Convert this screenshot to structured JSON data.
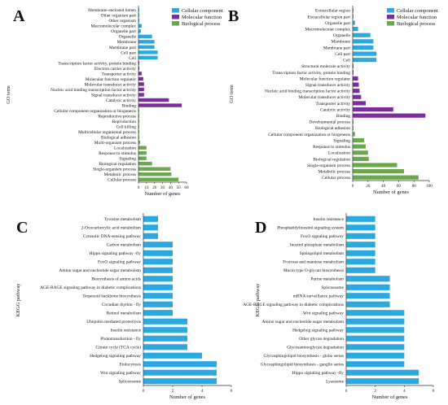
{
  "chart_data": [
    {
      "panel": "A",
      "type": "bar",
      "orientation": "horizontal",
      "xlabel": "Number of genes",
      "ylabel": "GO term",
      "xlim": [
        0,
        60
      ],
      "xticks": [
        0,
        10,
        20,
        30,
        40,
        50,
        60
      ],
      "legend": {
        "position": "top-right",
        "entries": [
          "Cellular component",
          "Molecular function",
          "Biological process"
        ]
      },
      "colors": {
        "Cellular component": "#29a9e0",
        "Molecular function": "#7b2f9e",
        "Biological process": "#6aa84f"
      },
      "categories": [
        {
          "label": "Membrane-enclosed lumen",
          "group": "Cellular component",
          "value": 1
        },
        {
          "label": "Other organism part",
          "group": "Cellular component",
          "value": 1
        },
        {
          "label": "Other organism",
          "group": "Cellular component",
          "value": 1
        },
        {
          "label": "Macromolecular complex",
          "group": "Cellular component",
          "value": 4
        },
        {
          "label": "Organelle part",
          "group": "Cellular component",
          "value": 3
        },
        {
          "label": "Organelle",
          "group": "Cellular component",
          "value": 17
        },
        {
          "label": "Membrane",
          "group": "Cellular component",
          "value": 20
        },
        {
          "label": "Membrane part",
          "group": "Cellular component",
          "value": 20
        },
        {
          "label": "Cell part",
          "group": "Cellular component",
          "value": 24
        },
        {
          "label": "Cell",
          "group": "Cellular component",
          "value": 24
        },
        {
          "label": "Transcription factor activity, protein binding",
          "group": "Molecular function",
          "value": 1
        },
        {
          "label": "Electron carrier activity",
          "group": "Molecular function",
          "value": 1
        },
        {
          "label": "Transporter activity",
          "group": "Molecular function",
          "value": 4
        },
        {
          "label": "Molecular function regulator",
          "group": "Molecular function",
          "value": 6
        },
        {
          "label": "Molecular transducer activity",
          "group": "Molecular function",
          "value": 7
        },
        {
          "label": "Nucleic acid binding transcription factor activity",
          "group": "Molecular function",
          "value": 7
        },
        {
          "label": "Signal transducer activity",
          "group": "Molecular function",
          "value": 7
        },
        {
          "label": "Catalytic activity",
          "group": "Molecular function",
          "value": 38
        },
        {
          "label": "Binding",
          "group": "Molecular function",
          "value": 54
        },
        {
          "label": "Cellular component organization or biogenesis",
          "group": "Biological process",
          "value": 1
        },
        {
          "label": "Reproductive process",
          "group": "Biological process",
          "value": 1
        },
        {
          "label": "Reproduction",
          "group": "Biological process",
          "value": 1
        },
        {
          "label": "Cell killing",
          "group": "Biological process",
          "value": 1
        },
        {
          "label": "Multicellular organismal process",
          "group": "Biological process",
          "value": 1
        },
        {
          "label": "Biological adhesion",
          "group": "Biological process",
          "value": 1
        },
        {
          "label": "Multi-organism process",
          "group": "Biological process",
          "value": 2
        },
        {
          "label": "Localization",
          "group": "Biological process",
          "value": 10
        },
        {
          "label": "Response to stimulus",
          "group": "Biological process",
          "value": 10
        },
        {
          "label": "Signaling",
          "group": "Biological process",
          "value": 10
        },
        {
          "label": "Biological regulation",
          "group": "Biological process",
          "value": 17
        },
        {
          "label": "Single-organism process",
          "group": "Biological process",
          "value": 40
        },
        {
          "label": "Metabolic process",
          "group": "Biological process",
          "value": 41
        },
        {
          "label": "Cellular process",
          "group": "Biological process",
          "value": 50
        }
      ]
    },
    {
      "panel": "B",
      "type": "bar",
      "orientation": "horizontal",
      "xlabel": "Number of genes",
      "ylabel": "GO term",
      "xlim": [
        0,
        100
      ],
      "xticks": [
        0,
        20,
        40,
        60,
        80,
        100
      ],
      "legend": {
        "position": "top-right",
        "entries": [
          "Cellular component",
          "Molecular function",
          "Biological process"
        ]
      },
      "colors": {
        "Cellular component": "#29a9e0",
        "Molecular function": "#7b2f9e",
        "Biological process": "#6aa84f"
      },
      "categories": [
        {
          "label": "Extracellular region",
          "group": "Cellular component",
          "value": 1
        },
        {
          "label": "Extracellular region part",
          "group": "Cellular component",
          "value": 1
        },
        {
          "label": "Organelle part",
          "group": "Cellular component",
          "value": 3
        },
        {
          "label": "Macromolecular complex",
          "group": "Cellular component",
          "value": 7
        },
        {
          "label": "Organelle",
          "group": "Cellular component",
          "value": 23
        },
        {
          "label": "Membrane",
          "group": "Cellular component",
          "value": 27
        },
        {
          "label": "Membrane part",
          "group": "Cellular component",
          "value": 27
        },
        {
          "label": "Cell part",
          "group": "Cellular component",
          "value": 31
        },
        {
          "label": "Cell",
          "group": "Cellular component",
          "value": 31
        },
        {
          "label": "Structural molecule activity",
          "group": "Molecular function",
          "value": 1
        },
        {
          "label": "Transcription factor activity, protein binding",
          "group": "Molecular function",
          "value": 1
        },
        {
          "label": "Molecular function regulator",
          "group": "Molecular function",
          "value": 7
        },
        {
          "label": "Signal transducer activity",
          "group": "Molecular function",
          "value": 8
        },
        {
          "label": "Nucleic acid binding transcription factor activity",
          "group": "Molecular function",
          "value": 9
        },
        {
          "label": "Molecular transducer activity",
          "group": "Molecular function",
          "value": 11
        },
        {
          "label": "Transporter activity",
          "group": "Molecular function",
          "value": 17
        },
        {
          "label": "Catalytic activity",
          "group": "Molecular function",
          "value": 53
        },
        {
          "label": "Binding",
          "group": "Molecular function",
          "value": 95
        },
        {
          "label": "Developmental process",
          "group": "Biological process",
          "value": 1
        },
        {
          "label": "Biological adhesion",
          "group": "Biological process",
          "value": 1
        },
        {
          "label": "Cellular component organization or biogenesis",
          "group": "Biological process",
          "value": 3
        },
        {
          "label": "Signaling",
          "group": "Biological process",
          "value": 15
        },
        {
          "label": "Response to stimulus",
          "group": "Biological process",
          "value": 17
        },
        {
          "label": "Localization",
          "group": "Biological process",
          "value": 20
        },
        {
          "label": "Biological regulation",
          "group": "Biological process",
          "value": 21
        },
        {
          "label": "Single-organism process",
          "group": "Biological process",
          "value": 58
        },
        {
          "label": "Metabolic process",
          "group": "Biological process",
          "value": 67
        },
        {
          "label": "Cellular process",
          "group": "Biological process",
          "value": 86
        }
      ]
    },
    {
      "panel": "C",
      "type": "bar",
      "orientation": "horizontal",
      "xlabel": "Number of genes",
      "ylabel": "KEGG pathway",
      "xlim": [
        0,
        6
      ],
      "xticks": [
        0,
        2,
        4,
        6
      ],
      "color": "#29a9e0",
      "categories": [
        {
          "label": "Tyrosine metabolism",
          "value": 1
        },
        {
          "label": "2-Oxocarboxylic acid metabolism",
          "value": 1
        },
        {
          "label": "Cytosolic DNA-sensing pathway",
          "value": 1
        },
        {
          "label": "Carbon metabolism",
          "value": 2
        },
        {
          "label": "Hippo signaling pathway -fly",
          "value": 2
        },
        {
          "label": "FoxO signaling pathway",
          "value": 2
        },
        {
          "label": "Amino sugar and nucleotide sugar metabolism",
          "value": 2
        },
        {
          "label": "Biosynthesis of amino acids",
          "value": 2
        },
        {
          "label": "AGE-RAGE signaling pathway in diabetic complications",
          "value": 2
        },
        {
          "label": "Terpenoid backbone biosynthesis",
          "value": 2
        },
        {
          "label": "Circadian rhythm - fly",
          "value": 2
        },
        {
          "label": "Retinol metabolism",
          "value": 2
        },
        {
          "label": "Ubiquitin mediated proteolysis",
          "value": 3
        },
        {
          "label": "Insulin resistance",
          "value": 3
        },
        {
          "label": "Phototransduction - fly",
          "value": 3
        },
        {
          "label": "Citrate cycle (TCA cycle)",
          "value": 3
        },
        {
          "label": "Hedgehog signaling pathway",
          "value": 4
        },
        {
          "label": "Endocytosis",
          "value": 5
        },
        {
          "label": "Wnt signaling pathway",
          "value": 5
        },
        {
          "label": "Spliceosome",
          "value": 5
        }
      ]
    },
    {
      "panel": "D",
      "type": "bar",
      "orientation": "horizontal",
      "xlabel": "Number of genes",
      "ylabel": "KEGG pathway",
      "xlim": [
        0,
        6
      ],
      "xticks": [
        0,
        2,
        4,
        6
      ],
      "color": "#29a9e0",
      "categories": [
        {
          "label": "Insulin resistance",
          "value": 2
        },
        {
          "label": "Phosphatidylinositol signaling system",
          "value": 2
        },
        {
          "label": "FoxO signaling pathway",
          "value": 2
        },
        {
          "label": "Inositol phosphate metabolism",
          "value": 2
        },
        {
          "label": "Sphingolipid metabolism",
          "value": 2
        },
        {
          "label": "Fructose and mannose metabolism",
          "value": 2
        },
        {
          "label": "Mucin type O-glycan biosynthesis",
          "value": 2
        },
        {
          "label": "Purine metabolism",
          "value": 3
        },
        {
          "label": "Spliceosome",
          "value": 3
        },
        {
          "label": "mRNA surveillance pathway",
          "value": 3
        },
        {
          "label": "AGE-RAGE signaling pathway in diabetic complications",
          "value": 3
        },
        {
          "label": "Wnt signaling pathway",
          "value": 4
        },
        {
          "label": "Amino sugar and nucleotide sugar metabolism",
          "value": 4
        },
        {
          "label": "Hedgehog signaling pathway",
          "value": 4
        },
        {
          "label": "Other glycan degradation",
          "value": 4
        },
        {
          "label": "Glycosaminoglycan degradation",
          "value": 4
        },
        {
          "label": "Glycosphingolipid biosynthesis - globo series",
          "value": 4
        },
        {
          "label": "Glycosphingolipid biosynthesis - ganglio series",
          "value": 4
        },
        {
          "label": "Hippo signaling pathway -fly",
          "value": 5
        },
        {
          "label": "Lysosome",
          "value": 5
        }
      ]
    }
  ]
}
